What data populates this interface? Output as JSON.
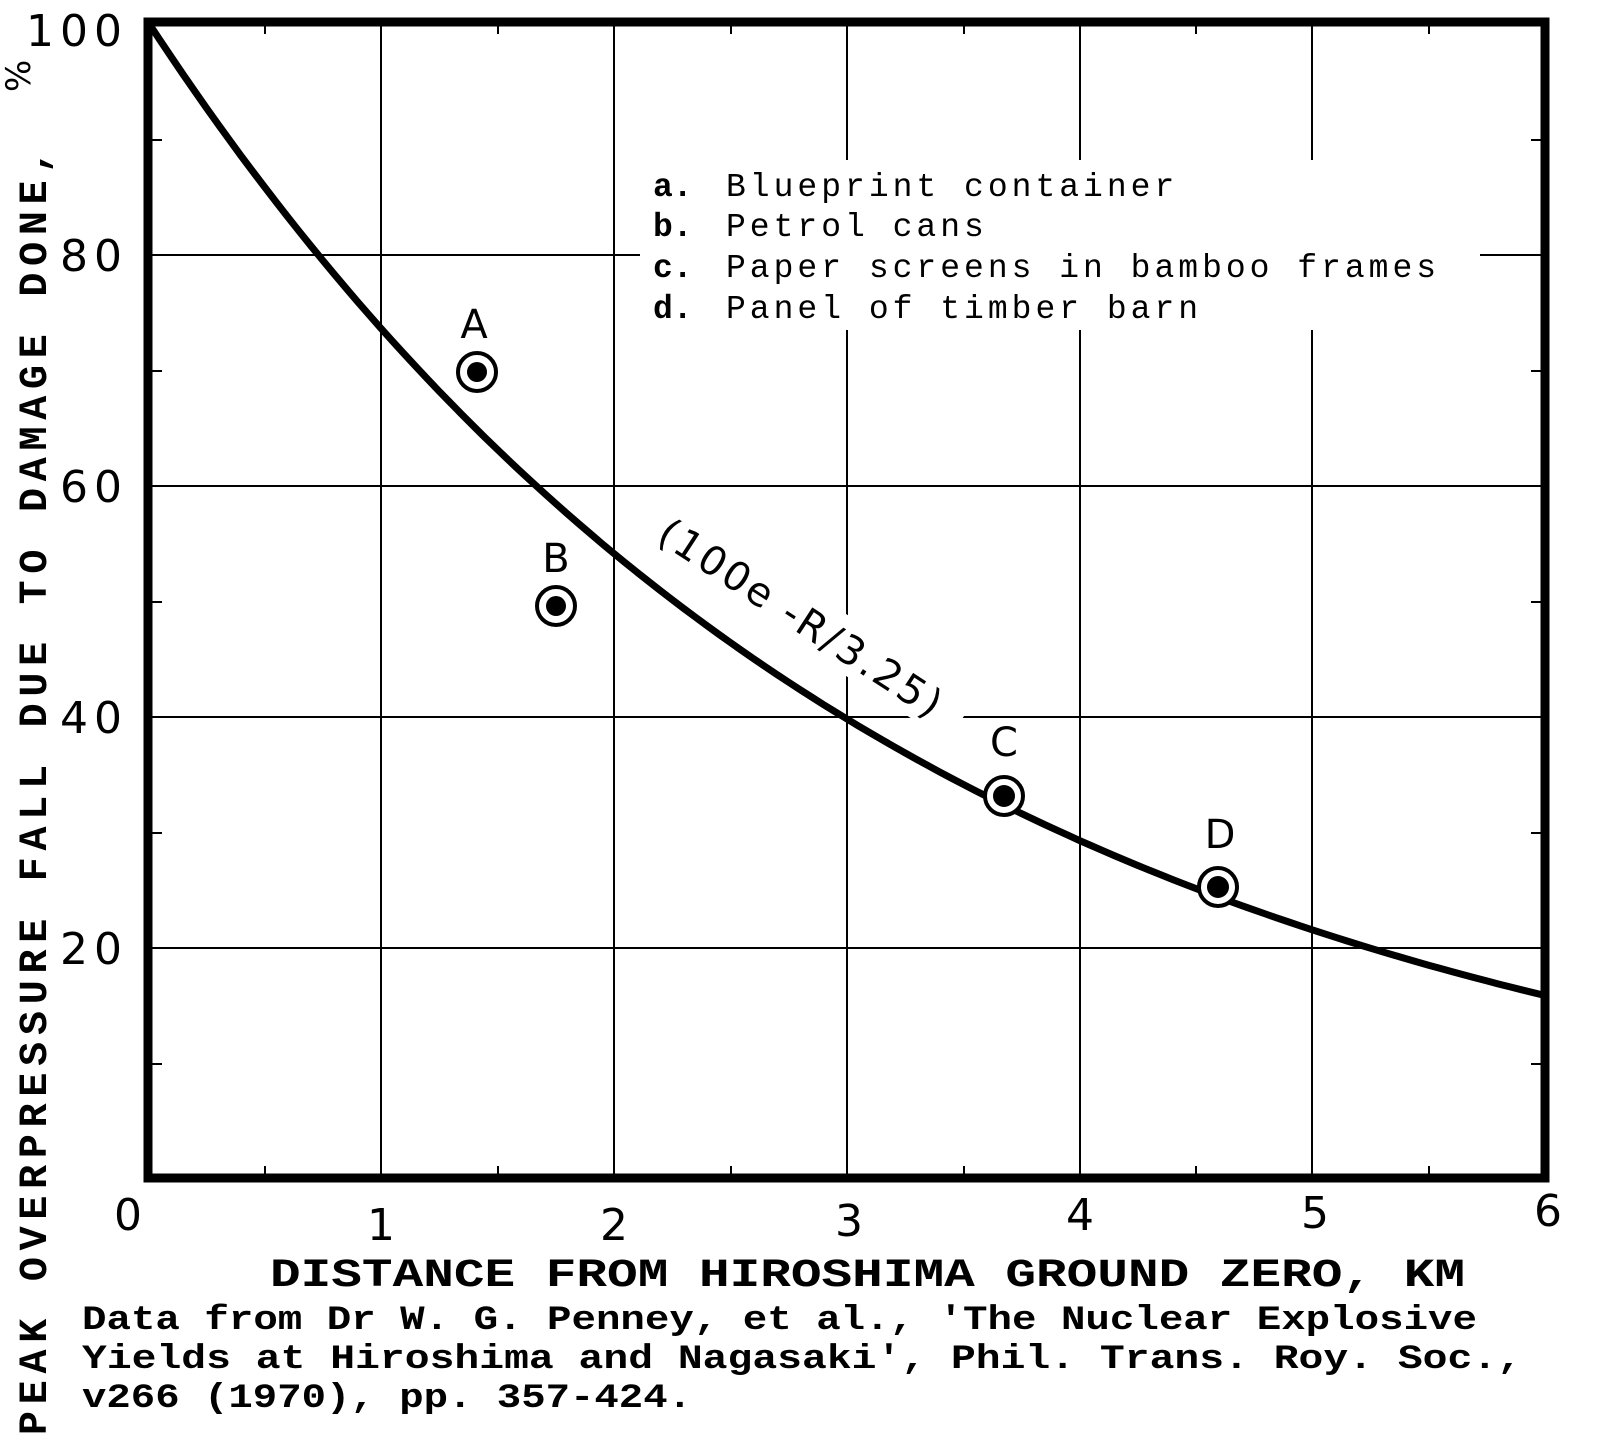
{
  "chart_data": {
    "type": "scatter",
    "title": "",
    "xlabel": "DISTANCE FROM HIROSHIMA GROUND ZERO, KM",
    "ylabel": "PEAK OVERPRESSURE FALL DUE TO DAMAGE DONE, %",
    "xlim": [
      0,
      6
    ],
    "ylim": [
      0,
      100
    ],
    "x_ticks": [
      "0",
      "1",
      "2",
      "3",
      "4",
      "5",
      "6"
    ],
    "y_ticks": [
      "20",
      "40",
      "60",
      "80",
      "100"
    ],
    "grid": true,
    "legend_position": "upper right (inside plot)",
    "points": [
      {
        "label": "A",
        "key": "a",
        "x": 1.41,
        "y": 69.7
      },
      {
        "label": "B",
        "key": "b",
        "x": 1.75,
        "y": 49.5
      },
      {
        "label": "C",
        "key": "c",
        "x": 3.68,
        "y": 33.0
      },
      {
        "label": "D",
        "key": "d",
        "x": 4.6,
        "y": 25.2
      }
    ],
    "fit_curve": {
      "formula": "100 * exp(-R/3.25)",
      "annotation": "(100e -R/3.25)",
      "x": [
        0,
        0.5,
        1,
        1.5,
        2,
        2.5,
        3,
        3.5,
        4,
        4.5,
        5,
        5.5,
        6
      ],
      "y": [
        100,
        85.7,
        73.5,
        63.0,
        54.0,
        46.3,
        39.7,
        34.1,
        29.2,
        25.0,
        21.5,
        18.4,
        15.8
      ]
    },
    "legend": [
      {
        "key": "a.",
        "text": "Blueprint container"
      },
      {
        "key": "b.",
        "text": "Petrol cans"
      },
      {
        "key": "c.",
        "text": "Paper screens in bamboo frames"
      },
      {
        "key": "d.",
        "text": "Panel of timber barn"
      }
    ]
  },
  "axes": {
    "y_ticks": [
      "100",
      "80",
      "60",
      "40",
      "20"
    ],
    "x_ticks": [
      "0",
      "1",
      "2",
      "3",
      "4",
      "5",
      "6"
    ],
    "xlabel": "DISTANCE FROM HIROSHIMA GROUND ZERO, KM",
    "ylabel_main": "PEAK OVERPRESSURE FALL DUE TO DAMAGE DONE,",
    "ylabel_unit": "%"
  },
  "annotations": {
    "curve": "(100e -R/3.25)",
    "points": [
      "A",
      "B",
      "C",
      "D"
    ]
  },
  "legend": {
    "items": [
      {
        "key": "a.",
        "text": "Blueprint container"
      },
      {
        "key": "b.",
        "text": "Petrol cans"
      },
      {
        "key": "c.",
        "text": "Paper screens in bamboo frames"
      },
      {
        "key": "d.",
        "text": "Panel of timber barn"
      }
    ]
  },
  "source": {
    "lines": [
      "Data from Dr W. G. Penney, et al., 'The Nuclear Explosive",
      "Yields at Hiroshima and Nagasaki',  Phil. Trans. Roy. Soc.,",
      "v266 (1970), pp. 357-424."
    ]
  },
  "colors": {
    "ink": "#000000",
    "paper": "#ffffff"
  }
}
